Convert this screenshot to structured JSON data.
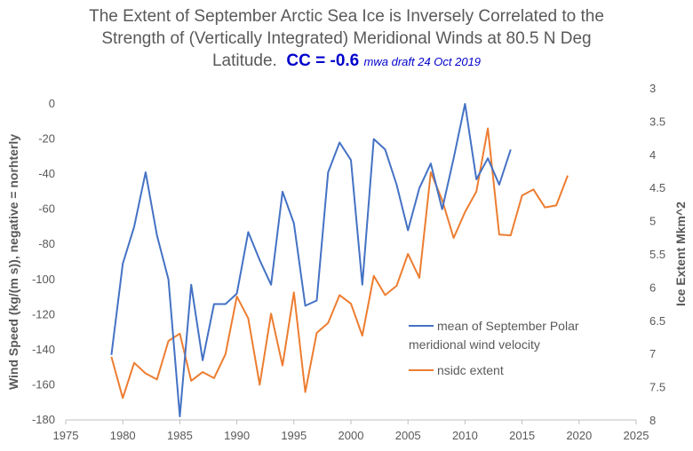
{
  "header": {
    "title_line1": "The Extent of September Arctic Sea Ice is Inversely Correlated to the",
    "title_line2": "Strength of (Vertically Integrated) Meridional Winds at 80.5 N Deg",
    "title_line3": "Latitude.",
    "cc_label": "CC = -0.6",
    "note": "mwa draft 24 Oct 2019"
  },
  "chart_data": {
    "type": "line",
    "title": "The Extent of September Arctic Sea Ice is Inversely Correlated to the Strength of (Vertically Integrated) Meridional Winds at 80.5 N Deg Latitude. CC = -0.6",
    "xlabel": "",
    "ylabel": "Wind Speed (kg/(m s)), negative = norhterly",
    "y2label": "Ice Extent Mkm^2",
    "xlim": [
      1975,
      2025
    ],
    "ylim": [
      -180,
      0
    ],
    "y2lim": [
      3,
      8
    ],
    "y2_inverted": true,
    "grid": false,
    "legend_position": "lower-right",
    "x_ticks": [
      1975,
      1980,
      1985,
      1990,
      1995,
      2000,
      2005,
      2010,
      2015,
      2020,
      2025
    ],
    "y_ticks": [
      0,
      -20,
      -40,
      -60,
      -80,
      -100,
      -120,
      -140,
      -160,
      -180
    ],
    "y2_ticks": [
      3,
      3.5,
      4,
      4.5,
      5,
      5.5,
      6,
      6.5,
      7,
      7.5,
      8
    ],
    "series": [
      {
        "name": "mean of September Polar meridional wind velocity",
        "axis": "left",
        "color": "#4472c4",
        "x": [
          1979,
          1980,
          1981,
          1982,
          1983,
          1984,
          1985,
          1986,
          1987,
          1988,
          1989,
          1990,
          1991,
          1992,
          1993,
          1994,
          1995,
          1996,
          1997,
          1998,
          1999,
          2000,
          2001,
          2002,
          2003,
          2004,
          2005,
          2006,
          2007,
          2008,
          2009,
          2010,
          2011,
          2012,
          2013,
          2014
        ],
        "values": [
          -143,
          -91,
          -70,
          -39,
          -75,
          -100,
          -178,
          -103,
          -146,
          -114,
          -114,
          -108,
          -73,
          -89,
          -103,
          -50,
          -68,
          -115,
          -112,
          -39,
          -22,
          -32,
          -103,
          -20,
          -26,
          -46,
          -72,
          -48,
          -34,
          -60,
          -31,
          0,
          -43,
          -31,
          -46,
          -26
        ]
      },
      {
        "name": "nsidc extent",
        "axis": "right",
        "color": "#ed7d31",
        "x": [
          1979,
          1980,
          1981,
          1982,
          1983,
          1984,
          1985,
          1986,
          1987,
          1988,
          1989,
          1990,
          1991,
          1992,
          1993,
          1994,
          1995,
          1996,
          1997,
          1998,
          1999,
          2000,
          2001,
          2002,
          2003,
          2004,
          2005,
          2006,
          2007,
          2008,
          2009,
          2010,
          2011,
          2012,
          2013,
          2014,
          2015,
          2016,
          2017,
          2018,
          2019
        ],
        "values": [
          7.05,
          7.67,
          7.14,
          7.3,
          7.39,
          6.81,
          6.7,
          7.41,
          7.28,
          7.37,
          7.01,
          6.14,
          6.47,
          7.47,
          6.4,
          7.18,
          6.08,
          7.58,
          6.69,
          6.54,
          6.12,
          6.25,
          6.73,
          5.83,
          6.12,
          5.98,
          5.5,
          5.86,
          4.27,
          4.69,
          5.26,
          4.87,
          4.56,
          3.61,
          5.21,
          5.22,
          4.62,
          4.53,
          4.8,
          4.77,
          4.32
        ]
      }
    ]
  }
}
